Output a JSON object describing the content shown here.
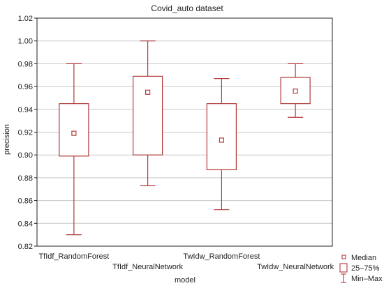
{
  "chart_data": {
    "type": "box",
    "title": "Covid_auto dataset",
    "xlabel": "model",
    "ylabel": "precision",
    "ylim": [
      0.82,
      1.02
    ],
    "yticks": [
      "0.82",
      "0.84",
      "0.86",
      "0.88",
      "0.90",
      "0.92",
      "0.94",
      "0.96",
      "0.98",
      "1.00",
      "1.02"
    ],
    "grid": true,
    "color": "#b23a3a",
    "categories": [
      "TfIdf_RandomForest",
      "TfIdf_NeuralNetwork",
      "TwIdw_RandomForest",
      "TwIdw_NeuralNetwork"
    ],
    "boxes": [
      {
        "category": "TfIdf_RandomForest",
        "min": 0.83,
        "q1": 0.899,
        "median": 0.919,
        "q3": 0.945,
        "max": 0.98
      },
      {
        "category": "TfIdf_NeuralNetwork",
        "min": 0.873,
        "q1": 0.9,
        "median": 0.955,
        "q3": 0.969,
        "max": 1.0
      },
      {
        "category": "TwIdw_RandomForest",
        "min": 0.852,
        "q1": 0.887,
        "median": 0.913,
        "q3": 0.945,
        "max": 0.967
      },
      {
        "category": "TwIdw_NeuralNetwork",
        "min": 0.933,
        "q1": 0.945,
        "median": 0.956,
        "q3": 0.968,
        "max": 0.98
      }
    ],
    "legend": {
      "position": "bottom-right",
      "items": [
        {
          "symbol": "median",
          "label": "Median"
        },
        {
          "symbol": "box",
          "label": "25–75%"
        },
        {
          "symbol": "whisker",
          "label": "Min–Max"
        }
      ]
    }
  }
}
